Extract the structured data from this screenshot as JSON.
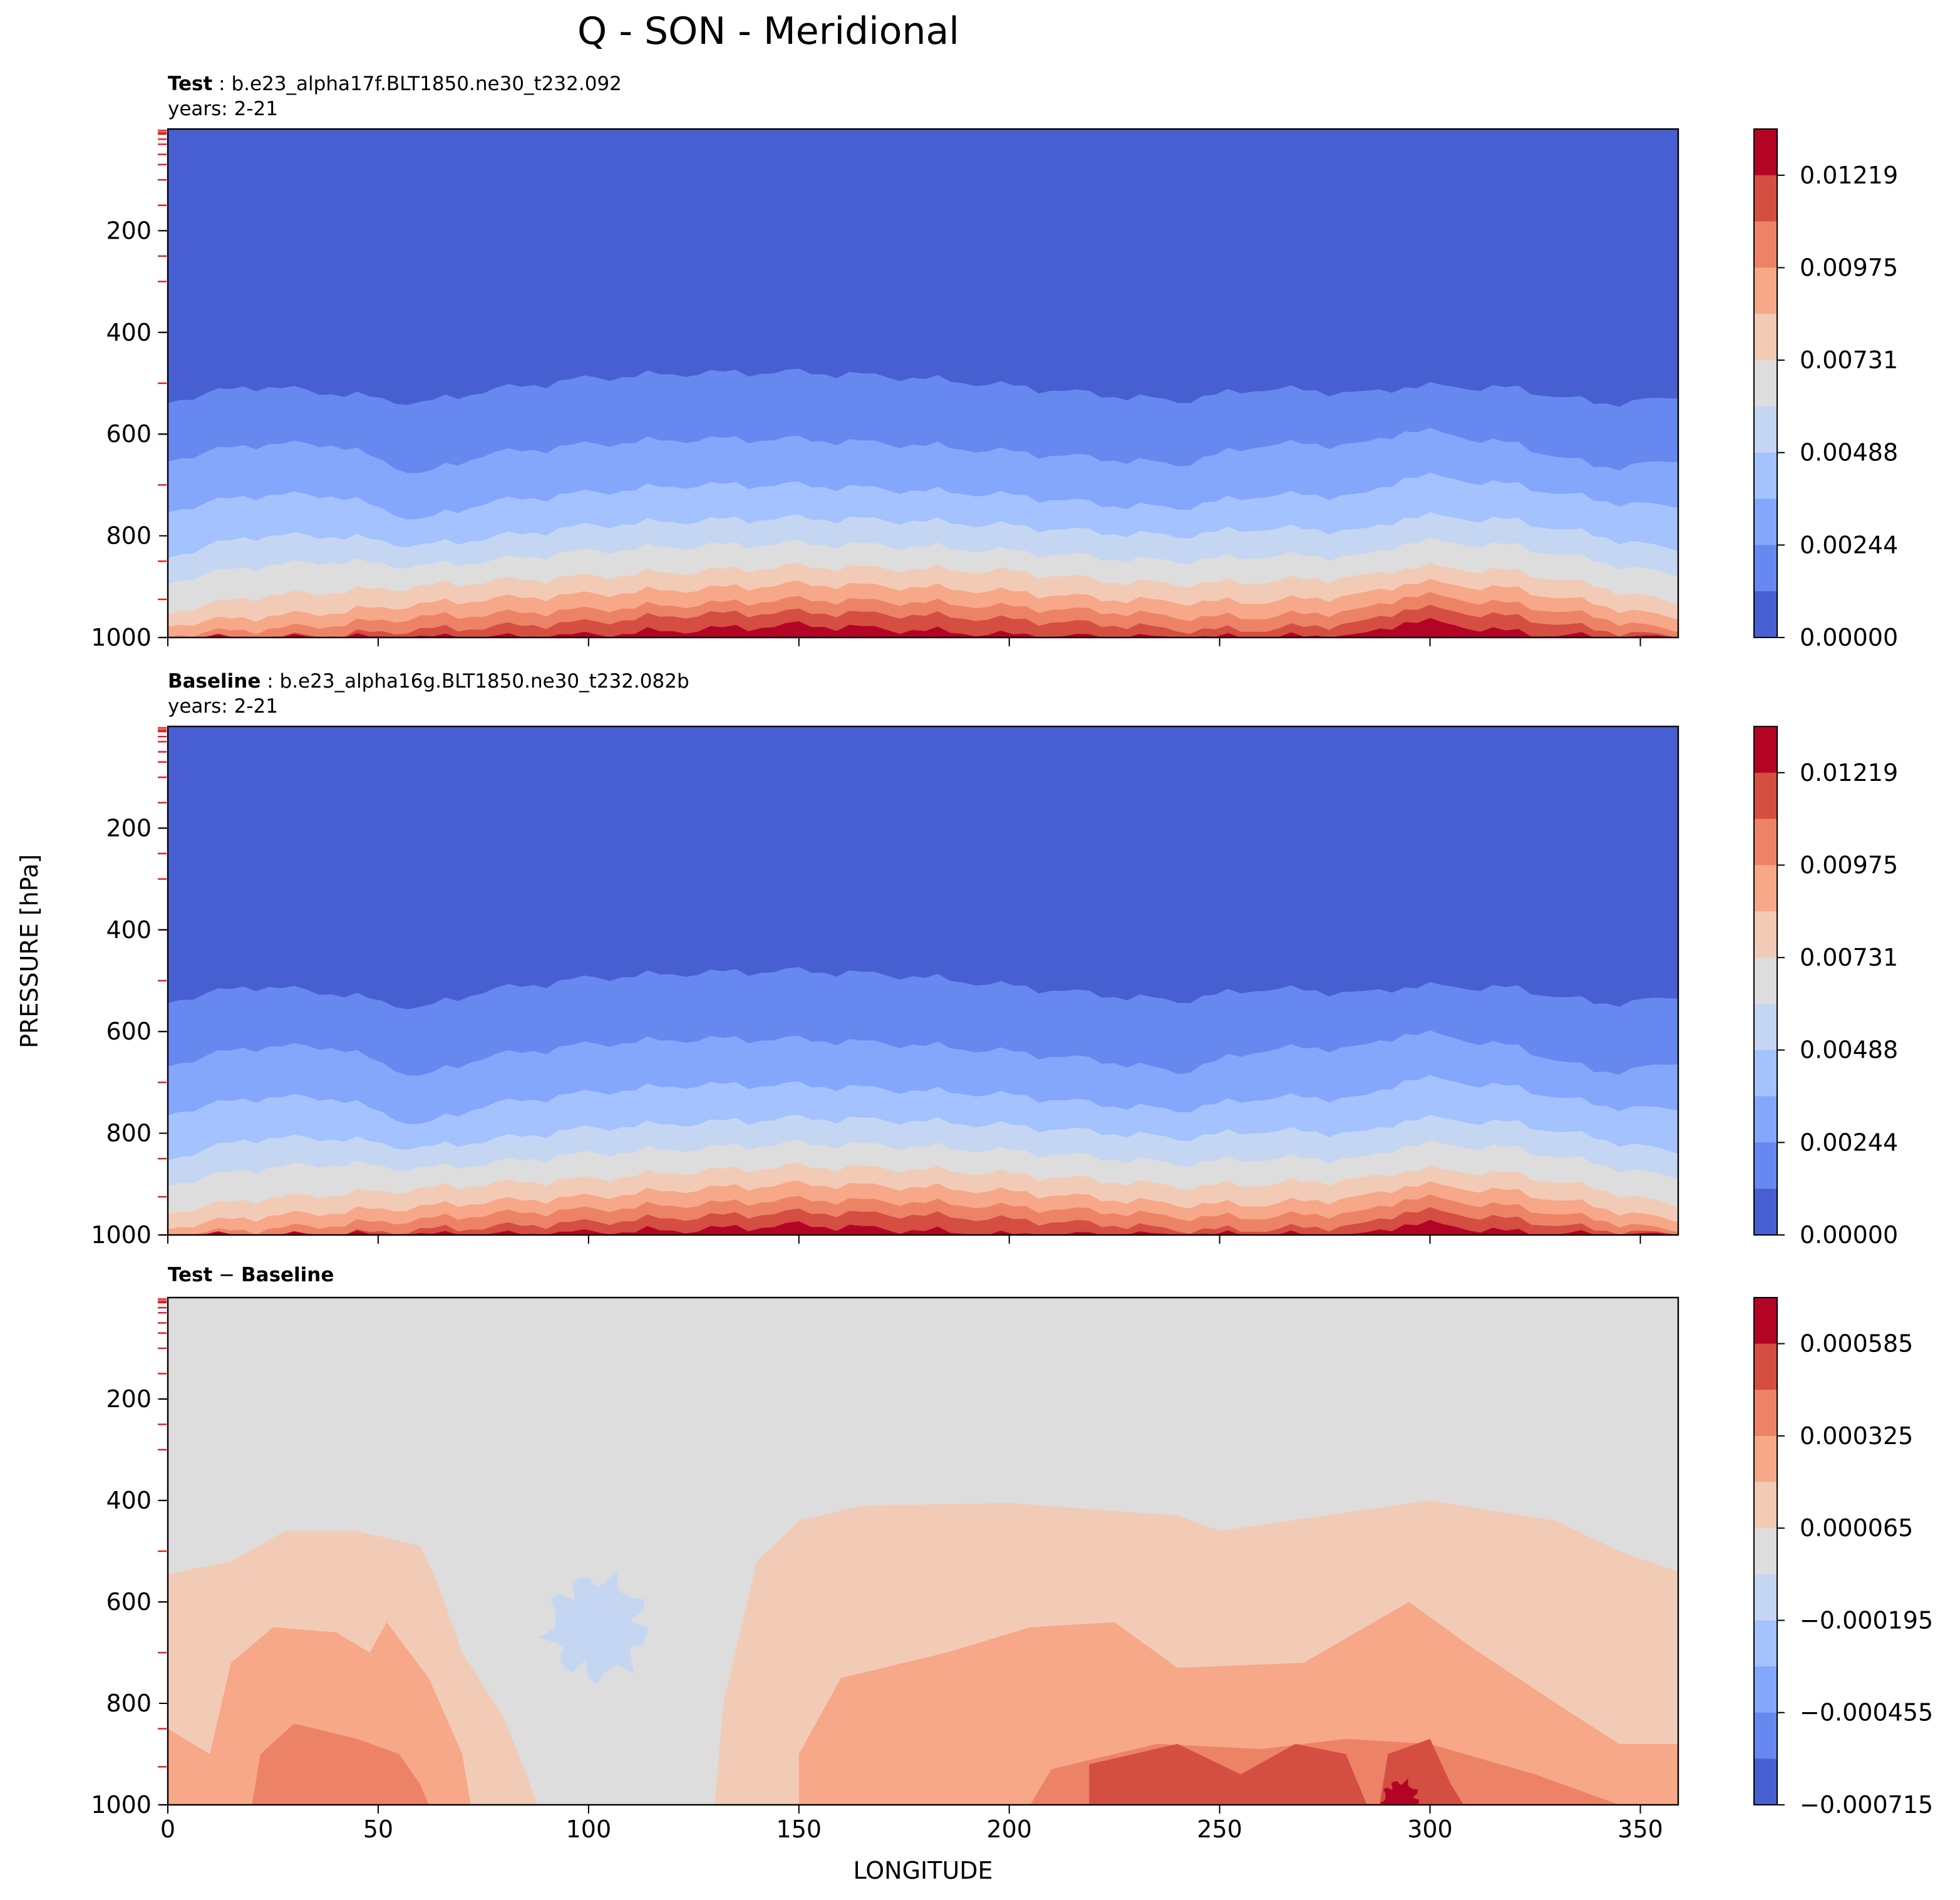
{
  "chart_data": {
    "type": "contourf",
    "suptitle": "Q - SON - Meridional",
    "xlabel": "LONGITUDE",
    "ylabel": "PRESSURE [hPa]",
    "xlim": [
      0,
      359
    ],
    "ylim": [
      1000,
      0
    ],
    "xticks": [
      0,
      50,
      100,
      150,
      200,
      250,
      300,
      350
    ],
    "yticks": [
      200,
      400,
      600,
      800,
      1000
    ],
    "panels": [
      {
        "title_bold": "Test",
        "title_rest": ": b.e23_alpha17f.BLT1850.ne30_t232.092",
        "subtitle": "years: 2-21",
        "kind": "field",
        "colorbar_labels": [
          "0.01219",
          "0.00975",
          "0.00731",
          "0.00488",
          "0.00244",
          "0.00000"
        ],
        "bands_top_to_bottom": 11,
        "contours_hPa": {
          "x": [
            0,
            20,
            40,
            60,
            75,
            100,
            125,
            150,
            175,
            200,
            225,
            240,
            260,
            285,
            295,
            320,
            340,
            359
          ],
          "b1": [
            535,
            505,
            520,
            540,
            515,
            490,
            480,
            478,
            488,
            505,
            525,
            535,
            510,
            520,
            505,
            510,
            540,
            530
          ],
          "b2": [
            650,
            620,
            620,
            680,
            640,
            620,
            610,
            610,
            620,
            635,
            650,
            660,
            620,
            620,
            590,
            620,
            665,
            655
          ],
          "b3": [
            750,
            720,
            720,
            770,
            735,
            715,
            700,
            700,
            710,
            720,
            740,
            745,
            720,
            720,
            680,
            700,
            730,
            745
          ],
          "b4": [
            840,
            800,
            800,
            820,
            805,
            780,
            770,
            765,
            770,
            780,
            795,
            800,
            785,
            790,
            760,
            770,
            800,
            830
          ],
          "b5": [
            890,
            860,
            850,
            860,
            850,
            830,
            820,
            815,
            820,
            830,
            845,
            850,
            840,
            840,
            810,
            820,
            850,
            880
          ],
          "b6": [
            950,
            920,
            910,
            900,
            890,
            880,
            870,
            860,
            865,
            870,
            890,
            895,
            890,
            880,
            860,
            870,
            900,
            935
          ],
          "b7": [
            975,
            960,
            950,
            935,
            925,
            915,
            905,
            895,
            900,
            910,
            925,
            930,
            930,
            915,
            890,
            905,
            935,
            965
          ],
          "b8": [
            995,
            985,
            975,
            960,
            955,
            945,
            935,
            925,
            930,
            940,
            950,
            960,
            960,
            945,
            915,
            935,
            960,
            990
          ],
          "b9": [
            1000,
            1000,
            995,
            985,
            980,
            970,
            955,
            950,
            955,
            965,
            975,
            985,
            985,
            970,
            940,
            960,
            985,
            1000
          ],
          "b10": [
            1000,
            1000,
            1000,
            1000,
            1000,
            995,
            985,
            975,
            985,
            995,
            1000,
            1000,
            1000,
            995,
            965,
            990,
            1000,
            1000
          ]
        }
      },
      {
        "title_bold": "Baseline",
        "title_rest": ": b.e23_alpha16g.BLT1850.ne30_t232.082b",
        "subtitle": "years: 2-21",
        "kind": "field",
        "colorbar_labels": [
          "0.01219",
          "0.00975",
          "0.00731",
          "0.00488",
          "0.00244",
          "0.00000"
        ],
        "bands_top_to_bottom": 11,
        "contours_hPa": {
          "x": [
            0,
            20,
            40,
            60,
            75,
            100,
            125,
            150,
            175,
            200,
            225,
            240,
            260,
            285,
            295,
            320,
            340,
            359
          ],
          "b1": [
            540,
            510,
            525,
            555,
            520,
            495,
            485,
            480,
            490,
            510,
            530,
            540,
            515,
            525,
            510,
            515,
            545,
            535
          ],
          "b2": [
            665,
            630,
            630,
            690,
            650,
            625,
            615,
            615,
            625,
            640,
            660,
            680,
            635,
            630,
            600,
            630,
            680,
            665
          ],
          "b3": [
            760,
            730,
            730,
            785,
            745,
            720,
            705,
            705,
            715,
            725,
            745,
            755,
            730,
            730,
            690,
            710,
            745,
            755
          ],
          "b4": [
            850,
            810,
            810,
            830,
            815,
            790,
            780,
            770,
            775,
            785,
            800,
            810,
            795,
            800,
            770,
            780,
            810,
            840
          ],
          "b5": [
            900,
            870,
            860,
            870,
            860,
            840,
            830,
            820,
            825,
            835,
            850,
            860,
            850,
            850,
            820,
            830,
            860,
            890
          ],
          "b6": [
            955,
            930,
            920,
            910,
            900,
            890,
            875,
            865,
            870,
            880,
            895,
            905,
            900,
            890,
            870,
            880,
            910,
            945
          ],
          "b7": [
            985,
            965,
            955,
            945,
            935,
            925,
            910,
            900,
            905,
            915,
            930,
            940,
            940,
            925,
            900,
            915,
            945,
            975
          ],
          "b8": [
            1000,
            990,
            980,
            970,
            960,
            950,
            940,
            930,
            935,
            945,
            955,
            965,
            965,
            955,
            925,
            945,
            970,
            995
          ],
          "b9": [
            1000,
            1000,
            1000,
            990,
            985,
            975,
            965,
            955,
            960,
            970,
            980,
            990,
            990,
            980,
            950,
            970,
            990,
            1000
          ],
          "b10": [
            1000,
            1000,
            1000,
            1000,
            1000,
            995,
            990,
            980,
            990,
            1000,
            1000,
            1000,
            1000,
            1000,
            975,
            995,
            1000,
            1000
          ]
        }
      },
      {
        "title_bold": "Test",
        "title_sep": " − ",
        "title_bold2": "Baseline",
        "subtitle": "",
        "kind": "diff",
        "colorbar_labels": [
          "0.000585",
          "0.000325",
          "0.000065",
          "−0.000195",
          "−0.000455",
          "−0.000715"
        ],
        "bands_top_to_bottom": 11
      }
    ]
  }
}
